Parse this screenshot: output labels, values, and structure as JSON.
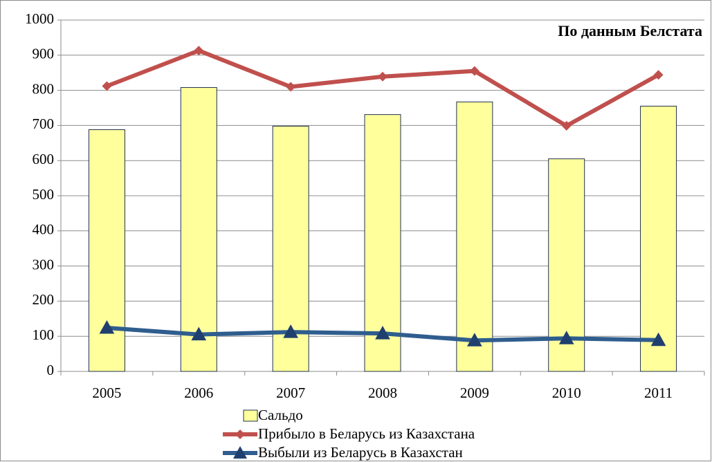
{
  "chart_data": {
    "type": "bar",
    "title": "По данным Белстата",
    "categories": [
      "2005",
      "2006",
      "2007",
      "2008",
      "2009",
      "2010",
      "2011"
    ],
    "series": [
      {
        "name": "Сальдо",
        "type": "bar",
        "color": "#ffff9c",
        "values": [
          688,
          808,
          698,
          731,
          767,
          605,
          755
        ]
      },
      {
        "name": "Прибыло в Беларусь из Казахстана",
        "type": "line",
        "marker": "diamond",
        "color": "#c0504d",
        "values": [
          812,
          913,
          810,
          839,
          855,
          699,
          844
        ]
      },
      {
        "name": "Выбыли из Беларусь в Казахстан",
        "type": "line",
        "marker": "triangle",
        "color": "#2f5d8e",
        "values": [
          124,
          105,
          112,
          108,
          88,
          94,
          89
        ]
      }
    ],
    "ylim": [
      0,
      1000
    ],
    "yticks": [
      0,
      100,
      200,
      300,
      400,
      500,
      600,
      700,
      800,
      900,
      1000
    ],
    "grid": true
  }
}
